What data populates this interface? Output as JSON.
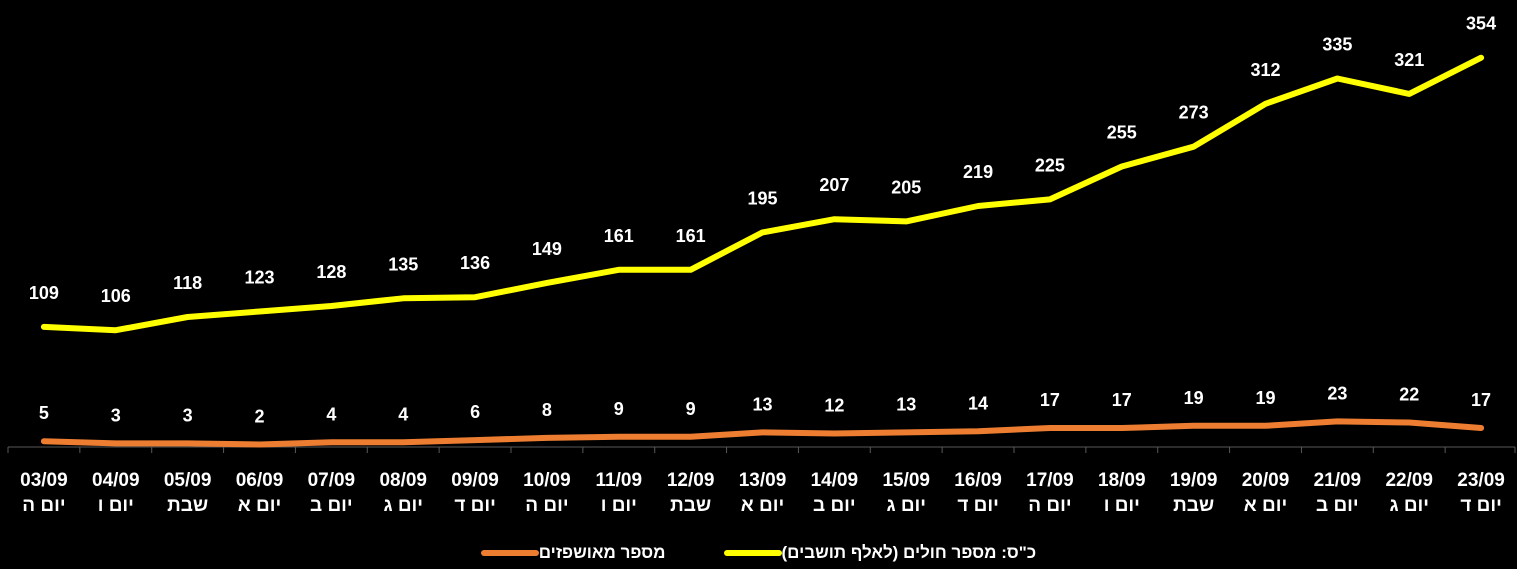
{
  "chart_data": {
    "type": "line",
    "categories": [
      [
        "03/09",
        "יום ה"
      ],
      [
        "04/09",
        "יום ו"
      ],
      [
        "05/09",
        "שבת"
      ],
      [
        "06/09",
        "יום א"
      ],
      [
        "07/09",
        "יום ב"
      ],
      [
        "08/09",
        "יום ג"
      ],
      [
        "09/09",
        "יום ד"
      ],
      [
        "10/09",
        "יום ה"
      ],
      [
        "11/09",
        "יום ו"
      ],
      [
        "12/09",
        "שבת"
      ],
      [
        "13/09",
        "יום א"
      ],
      [
        "14/09",
        "יום ב"
      ],
      [
        "15/09",
        "יום ג"
      ],
      [
        "16/09",
        "יום ד"
      ],
      [
        "17/09",
        "יום ה"
      ],
      [
        "18/09",
        "יום ו"
      ],
      [
        "19/09",
        "שבת"
      ],
      [
        "20/09",
        "יום א"
      ],
      [
        "21/09",
        "יום ב"
      ],
      [
        "22/09",
        "יום ג"
      ],
      [
        "23/09",
        "יום ד"
      ]
    ],
    "series": [
      {
        "name": "כ\"ס: מספר חולים (לאלף תושבים)",
        "color": "#ffff00",
        "values": [
          109,
          106,
          118,
          123,
          128,
          135,
          136,
          149,
          161,
          161,
          195,
          207,
          205,
          219,
          225,
          255,
          273,
          312,
          335,
          321,
          354
        ]
      },
      {
        "name": "מספר מאושפזים",
        "color": "#ed7d31",
        "values": [
          5,
          3,
          3,
          2,
          4,
          4,
          6,
          8,
          9,
          9,
          13,
          12,
          13,
          14,
          17,
          17,
          19,
          19,
          23,
          22,
          17
        ]
      }
    ],
    "ylim": [
      0,
      380
    ],
    "grid": false,
    "legend_position": "bottom-center",
    "title": "",
    "xlabel": "",
    "ylabel": ""
  }
}
